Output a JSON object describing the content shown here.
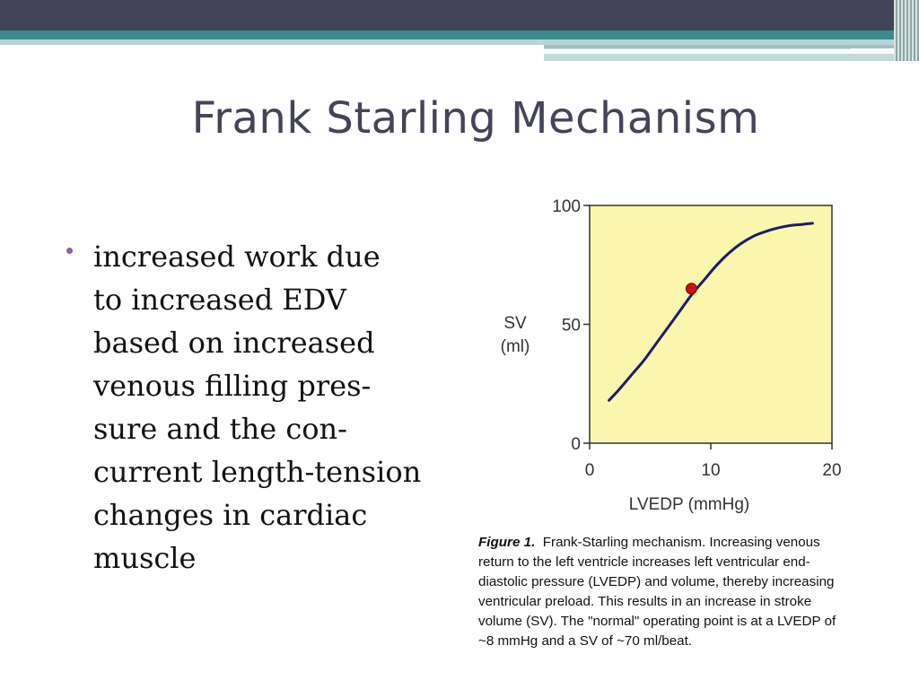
{
  "slide": {
    "title": "Frank Starling Mechanism",
    "bullet_lines": [
      "increased work due",
      "to increased EDV",
      "based on increased",
      "venous filling pres-",
      "sure and the con-",
      "current length-tension",
      "changes in cardiac",
      "muscle"
    ]
  },
  "chart_data": {
    "type": "line",
    "xlabel": "LVEDP (mmHg)",
    "ylabel_lines": [
      "SV",
      "(ml)"
    ],
    "xlim": [
      0,
      20
    ],
    "ylim": [
      0,
      100
    ],
    "x_ticks": [
      0,
      10,
      20
    ],
    "y_ticks": [
      0,
      50,
      100
    ],
    "grid": false,
    "series": [
      {
        "x": [
          1.6,
          2.5,
          3.5,
          4.5,
          5.5,
          6.5,
          7.5,
          8.5,
          9.5,
          10.5,
          11.5,
          12.5,
          13.5,
          14.5,
          15.5,
          16.5,
          17.5,
          18.4
        ],
        "y": [
          18,
          23,
          29,
          35,
          42,
          49,
          56,
          63,
          69,
          75,
          80,
          84,
          87,
          89,
          90.5,
          91.5,
          92,
          92.5
        ]
      }
    ],
    "highlight_point": {
      "x": 8.4,
      "y": 65
    },
    "colors": {
      "plot_bg": "#fbf6ad",
      "line": "#1c1c6b",
      "point": "#cc1111",
      "axis": "#333333"
    },
    "caption": {
      "label": "Figure 1.",
      "first_line": "Frank-Starling mechanism.  Increasing venous",
      "lines": [
        "return to the left ventricle increases left ventricular end-",
        "diastolic pressure (LVEDP) and volume, thereby increasing",
        "ventricular preload.  This results in an increase in stroke",
        "volume (SV).  The \"normal\" operating point is at a LVEDP of",
        "~8 mmHg and a SV of ~70 ml/beat."
      ]
    }
  }
}
